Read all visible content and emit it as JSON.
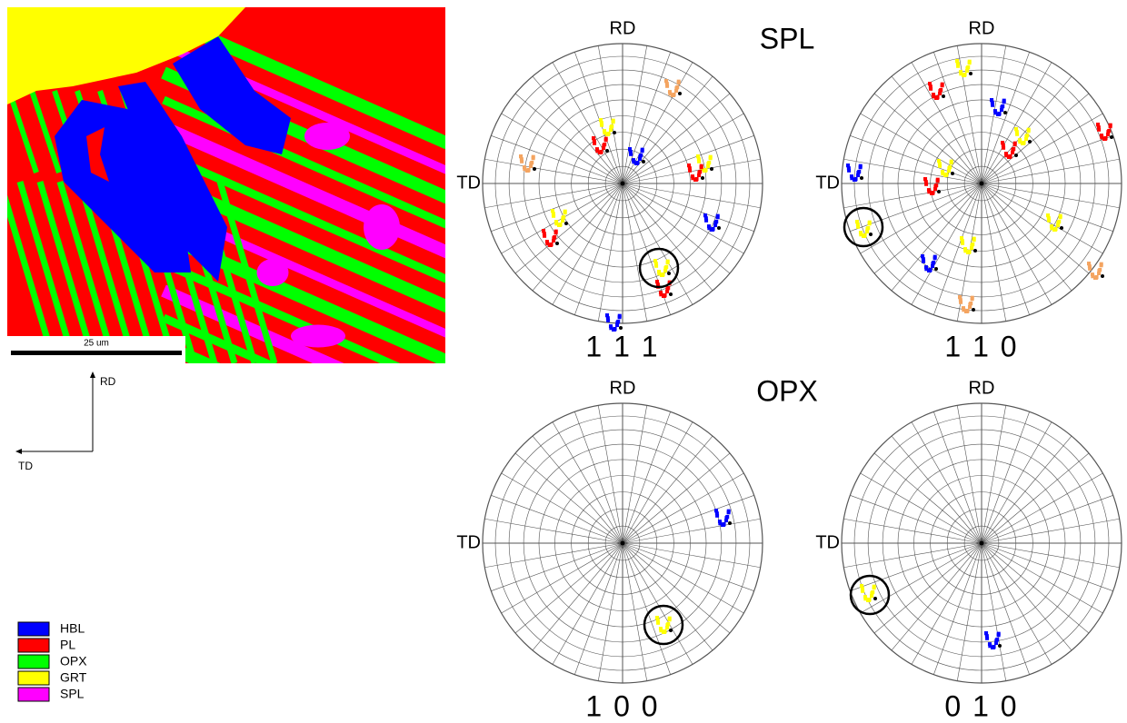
{
  "phase_map": {
    "scale_bar": "25 um",
    "axes": {
      "rd": "RD",
      "td": "TD"
    }
  },
  "legend": [
    {
      "label": "HBL",
      "color": "#0000ff"
    },
    {
      "label": "PL",
      "color": "#ff0000"
    },
    {
      "label": "OPX",
      "color": "#00ff00"
    },
    {
      "label": "GRT",
      "color": "#ffff00"
    },
    {
      "label": "SPL",
      "color": "#ff00ff"
    }
  ],
  "pole_figures": [
    {
      "title": "SPL",
      "figures": [
        {
          "label": "1 1 1",
          "rd": "RD",
          "td": "TD"
        },
        {
          "label": "1 1 0",
          "rd": "RD",
          "td": "TD"
        }
      ]
    },
    {
      "title": "OPX",
      "figures": [
        {
          "label": "1 0 0",
          "rd": "RD",
          "td": "TD"
        },
        {
          "label": "0 1 0",
          "rd": "RD",
          "td": "TD"
        }
      ]
    }
  ]
}
